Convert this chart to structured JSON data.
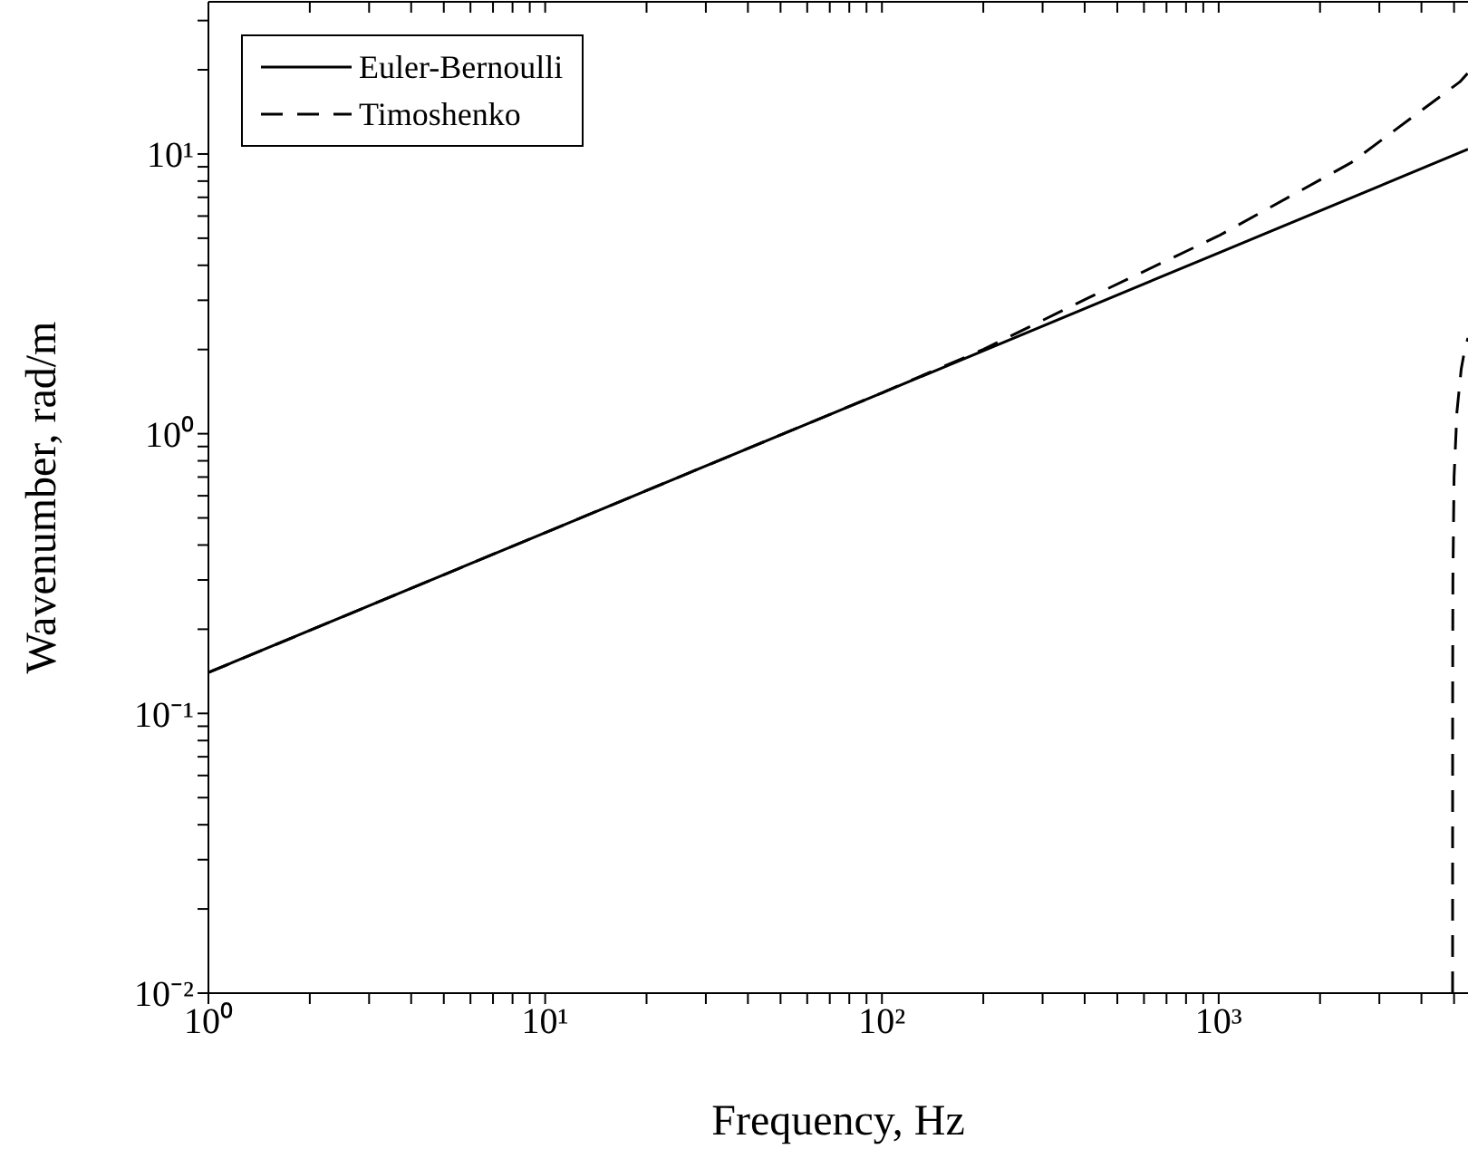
{
  "chart_data": {
    "type": "line",
    "xlabel": "Frequency, Hz",
    "ylabel": "Wavenumber, rad/m",
    "log": "xy",
    "legend": "top left",
    "marker": "none",
    "xlim": [
      1,
      5500
    ],
    "ylim": [
      0.01,
      35
    ],
    "xticks": [
      {
        "value": 1,
        "label": "10⁰"
      },
      {
        "value": 2,
        "label": null
      },
      {
        "value": 3,
        "label": null
      },
      {
        "value": 4,
        "label": null
      },
      {
        "value": 5,
        "label": null
      },
      {
        "value": 6,
        "label": null
      },
      {
        "value": 7,
        "label": null
      },
      {
        "value": 8,
        "label": null
      },
      {
        "value": 9,
        "label": null
      },
      {
        "value": 10,
        "label": "10¹"
      },
      {
        "value": 20,
        "label": null
      },
      {
        "value": 30,
        "label": null
      },
      {
        "value": 40,
        "label": null
      },
      {
        "value": 50,
        "label": null
      },
      {
        "value": 60,
        "label": null
      },
      {
        "value": 70,
        "label": null
      },
      {
        "value": 80,
        "label": null
      },
      {
        "value": 90,
        "label": null
      },
      {
        "value": 100,
        "label": "10²"
      },
      {
        "value": 200,
        "label": null
      },
      {
        "value": 300,
        "label": null
      },
      {
        "value": 400,
        "label": null
      },
      {
        "value": 500,
        "label": null
      },
      {
        "value": 600,
        "label": null
      },
      {
        "value": 700,
        "label": null
      },
      {
        "value": 800,
        "label": null
      },
      {
        "value": 900,
        "label": null
      },
      {
        "value": 1000,
        "label": "10³"
      },
      {
        "value": 2000,
        "label": null
      },
      {
        "value": 3000,
        "label": null
      },
      {
        "value": 4000,
        "label": null
      },
      {
        "value": 5000,
        "label": null
      }
    ],
    "yticks": [
      {
        "value": 0.01,
        "label": "10⁻²"
      },
      {
        "value": 0.02,
        "label": null
      },
      {
        "value": 0.03,
        "label": null
      },
      {
        "value": 0.04,
        "label": null
      },
      {
        "value": 0.05,
        "label": null
      },
      {
        "value": 0.06,
        "label": null
      },
      {
        "value": 0.07,
        "label": null
      },
      {
        "value": 0.08,
        "label": null
      },
      {
        "value": 0.09,
        "label": null
      },
      {
        "value": 0.1,
        "label": "10⁻¹"
      },
      {
        "value": 0.2,
        "label": null
      },
      {
        "value": 0.3,
        "label": null
      },
      {
        "value": 0.4,
        "label": null
      },
      {
        "value": 0.5,
        "label": null
      },
      {
        "value": 0.6,
        "label": null
      },
      {
        "value": 0.7,
        "label": null
      },
      {
        "value": 0.8,
        "label": null
      },
      {
        "value": 0.9,
        "label": null
      },
      {
        "value": 1,
        "label": "10⁰"
      },
      {
        "value": 2,
        "label": null
      },
      {
        "value": 3,
        "label": null
      },
      {
        "value": 4,
        "label": null
      },
      {
        "value": 5,
        "label": null
      },
      {
        "value": 6,
        "label": null
      },
      {
        "value": 7,
        "label": null
      },
      {
        "value": 8,
        "label": null
      },
      {
        "value": 9,
        "label": null
      },
      {
        "value": 10,
        "label": "10¹"
      },
      {
        "value": 20,
        "label": null
      },
      {
        "value": 30,
        "label": null
      }
    ],
    "series": [
      {
        "name": "Euler-Bernoulli",
        "color": "#000000",
        "line_style": "solid",
        "x": [
          1,
          10,
          100,
          1000,
          5500
        ],
        "values": [
          0.14,
          0.443,
          1.4,
          4.43,
          10.4
        ]
      },
      {
        "name": "Timoshenko",
        "color": "#000000",
        "line_style": "dashed",
        "x": [
          1,
          10,
          100,
          200,
          408,
          1000,
          2470,
          3810,
          5200,
          5500
        ],
        "values": [
          0.14,
          0.443,
          1.4,
          2.0,
          3.05,
          5.1,
          9.3,
          13.7,
          18.1,
          19.5
        ]
      },
      {
        "color": "#000000",
        "line_style": "dashed",
        "x": [
          4950.01,
          4951,
          4960,
          5000,
          5100,
          5250,
          5380,
          5500
        ],
        "values": [
          0.01,
          0.1,
          0.3,
          0.7,
          1.2,
          1.7,
          2.0,
          2.2
        ]
      }
    ]
  }
}
